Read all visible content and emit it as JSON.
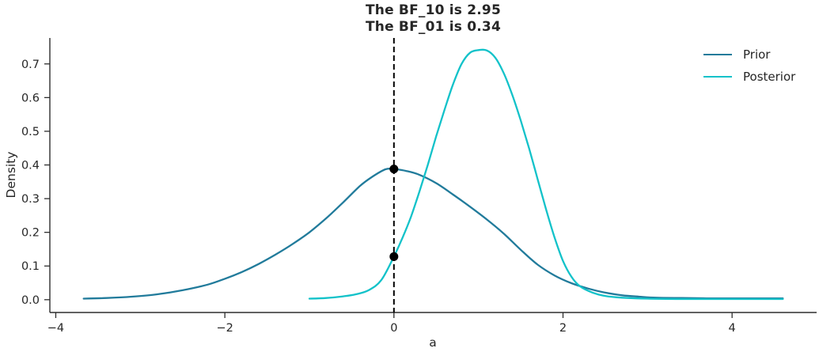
{
  "title_lines": [
    "The BF_10 is 2.95",
    "The BF_01 is 0.34"
  ],
  "chart_data": {
    "type": "line",
    "title": "The BF_10 is 2.95\nThe BF_01 is 0.34",
    "xlabel": "a",
    "ylabel": "Density",
    "xlim": [
      -4.07,
      5.0
    ],
    "ylim": [
      -0.038,
      0.777
    ],
    "xticks": [
      -4,
      -2,
      0,
      2,
      4
    ],
    "yticks": [
      0.0,
      0.1,
      0.2,
      0.3,
      0.4,
      0.5,
      0.6,
      0.7
    ],
    "grid": false,
    "legend_position": "upper right",
    "axis_color": "#2e2e2e",
    "series": [
      {
        "name": "Prior",
        "color": "#217b9b",
        "points": [
          [
            -3.67,
            0.003
          ],
          [
            -3.4,
            0.005
          ],
          [
            -3.1,
            0.009
          ],
          [
            -2.8,
            0.016
          ],
          [
            -2.5,
            0.028
          ],
          [
            -2.2,
            0.045
          ],
          [
            -2.0,
            0.062
          ],
          [
            -1.8,
            0.082
          ],
          [
            -1.6,
            0.106
          ],
          [
            -1.4,
            0.134
          ],
          [
            -1.2,
            0.165
          ],
          [
            -1.0,
            0.2
          ],
          [
            -0.8,
            0.242
          ],
          [
            -0.6,
            0.289
          ],
          [
            -0.4,
            0.338
          ],
          [
            -0.25,
            0.366
          ],
          [
            -0.1,
            0.387
          ],
          [
            0.0,
            0.388
          ],
          [
            0.15,
            0.382
          ],
          [
            0.3,
            0.371
          ],
          [
            0.5,
            0.346
          ],
          [
            0.7,
            0.312
          ],
          [
            0.9,
            0.276
          ],
          [
            1.1,
            0.238
          ],
          [
            1.3,
            0.196
          ],
          [
            1.5,
            0.148
          ],
          [
            1.7,
            0.104
          ],
          [
            1.9,
            0.072
          ],
          [
            2.1,
            0.049
          ],
          [
            2.3,
            0.033
          ],
          [
            2.5,
            0.021
          ],
          [
            2.7,
            0.013
          ],
          [
            2.9,
            0.009
          ],
          [
            3.1,
            0.006
          ],
          [
            3.4,
            0.005
          ],
          [
            3.7,
            0.004
          ],
          [
            4.0,
            0.004
          ],
          [
            4.3,
            0.004
          ],
          [
            4.6,
            0.004
          ]
        ]
      },
      {
        "name": "Posterior",
        "color": "#12c2c9",
        "points": [
          [
            -1.0,
            0.003
          ],
          [
            -0.8,
            0.005
          ],
          [
            -0.6,
            0.01
          ],
          [
            -0.45,
            0.016
          ],
          [
            -0.3,
            0.028
          ],
          [
            -0.15,
            0.058
          ],
          [
            0.0,
            0.128
          ],
          [
            0.1,
            0.183
          ],
          [
            0.2,
            0.245
          ],
          [
            0.3,
            0.32
          ],
          [
            0.4,
            0.4
          ],
          [
            0.5,
            0.485
          ],
          [
            0.6,
            0.565
          ],
          [
            0.7,
            0.64
          ],
          [
            0.8,
            0.7
          ],
          [
            0.9,
            0.733
          ],
          [
            1.0,
            0.741
          ],
          [
            1.1,
            0.74
          ],
          [
            1.2,
            0.718
          ],
          [
            1.3,
            0.672
          ],
          [
            1.4,
            0.608
          ],
          [
            1.5,
            0.532
          ],
          [
            1.6,
            0.448
          ],
          [
            1.7,
            0.358
          ],
          [
            1.8,
            0.268
          ],
          [
            1.9,
            0.185
          ],
          [
            2.0,
            0.115
          ],
          [
            2.1,
            0.068
          ],
          [
            2.2,
            0.04
          ],
          [
            2.35,
            0.021
          ],
          [
            2.5,
            0.011
          ],
          [
            2.7,
            0.006
          ],
          [
            3.0,
            0.003
          ],
          [
            3.4,
            0.002
          ],
          [
            4.0,
            0.002
          ],
          [
            4.6,
            0.002
          ]
        ]
      }
    ],
    "vline": {
      "x": 0,
      "style": "dashed",
      "color": "#000000"
    },
    "markers": [
      {
        "x": 0,
        "y": 0.388,
        "color": "#000000"
      },
      {
        "x": 0,
        "y": 0.128,
        "color": "#000000"
      }
    ]
  }
}
